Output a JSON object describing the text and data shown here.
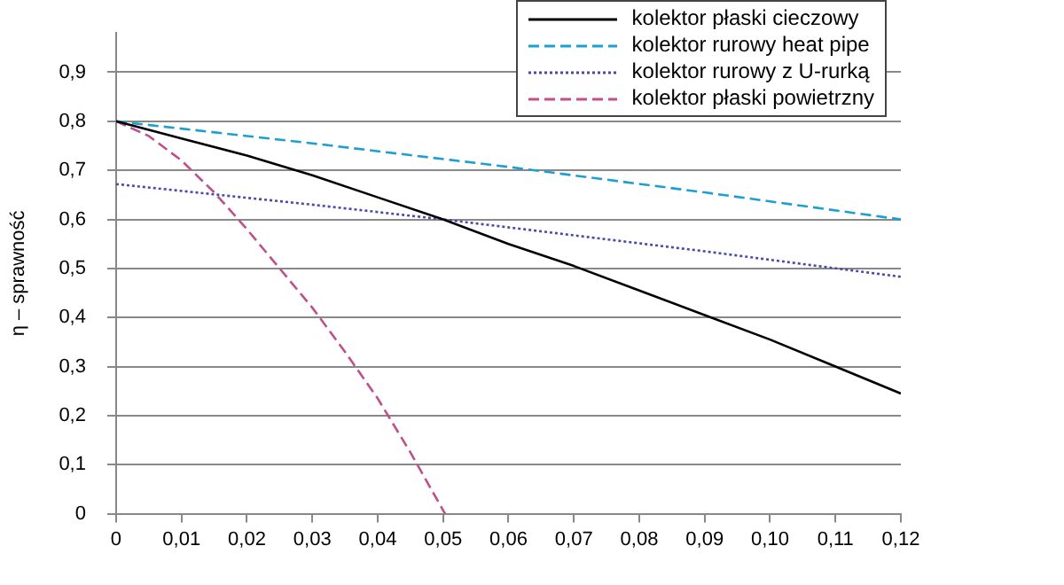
{
  "chart_data": {
    "type": "line",
    "ylabel": "η – sprawność",
    "xlim": [
      0,
      0.12
    ],
    "xticks": [
      0,
      {
        "value": 0.01,
        "label": "0,01"
      },
      {
        "value": 0.02,
        "label": "0,02"
      },
      {
        "value": 0.03,
        "label": "0,03"
      },
      {
        "value": 0.04,
        "label": "0,04"
      },
      {
        "value": 0.05,
        "label": "0,05"
      },
      {
        "value": 0.06,
        "label": "0,06"
      },
      {
        "value": 0.07,
        "label": "0,07"
      },
      {
        "value": 0.08,
        "label": "0,08"
      },
      {
        "value": 0.09,
        "label": "0,09"
      },
      {
        "value": 0.1,
        "label": "0,10"
      },
      {
        "value": 0.11,
        "label": "0,11"
      },
      {
        "value": 0.12,
        "label": "0,12"
      }
    ],
    "ylim": [
      0,
      0.98
    ],
    "yticks": [
      0,
      {
        "value": 0.1,
        "label": "0,1"
      },
      {
        "value": 0.2,
        "label": "0,2"
      },
      {
        "value": 0.3,
        "label": "0,3"
      },
      {
        "value": 0.4,
        "label": "0,4"
      },
      {
        "value": 0.5,
        "label": "0,5"
      },
      {
        "value": 0.6,
        "label": "0,6"
      },
      {
        "value": 0.7,
        "label": "0,7"
      },
      {
        "value": 0.8,
        "label": "0,8"
      },
      {
        "value": 0.9,
        "label": "0,9"
      }
    ],
    "grid": "y",
    "legend": "top right",
    "marker": "none",
    "series": [
      {
        "name": "kolektor płaski cieczowy",
        "color": "#000000",
        "line_style": "solid",
        "x": [
          0,
          0.01,
          0.02,
          0.03,
          0.04,
          0.05,
          0.06,
          0.07,
          0.08,
          0.09,
          0.1,
          0.11,
          0.12
        ],
        "values": [
          0.8,
          0.765,
          0.73,
          0.69,
          0.645,
          0.6,
          0.55,
          0.505,
          0.455,
          0.405,
          0.355,
          0.3,
          0.245
        ]
      },
      {
        "name": "kolektor rurowy heat pipe",
        "color": "#1e9fd0",
        "line_style": "dashed",
        "x": [
          0,
          0.03,
          0.06,
          0.09,
          0.12
        ],
        "values": [
          0.8,
          0.755,
          0.707,
          0.655,
          0.6
        ]
      },
      {
        "name": "kolektor rurowy z U-rurką",
        "color": "#4a4aa8",
        "line_style": "dotted",
        "x": [
          0,
          0.03,
          0.05,
          0.09,
          0.12
        ],
        "values": [
          0.672,
          0.63,
          0.6,
          0.535,
          0.483
        ]
      },
      {
        "name": "kolektor płaski powietrzny",
        "color": "#c0508a",
        "line_style": "dashed",
        "x": [
          0,
          0.005,
          0.01,
          0.015,
          0.02,
          0.025,
          0.03,
          0.035,
          0.04,
          0.045,
          0.0503
        ],
        "values": [
          0.8,
          0.77,
          0.72,
          0.655,
          0.58,
          0.5,
          0.42,
          0.33,
          0.235,
          0.125,
          0
        ]
      }
    ]
  }
}
